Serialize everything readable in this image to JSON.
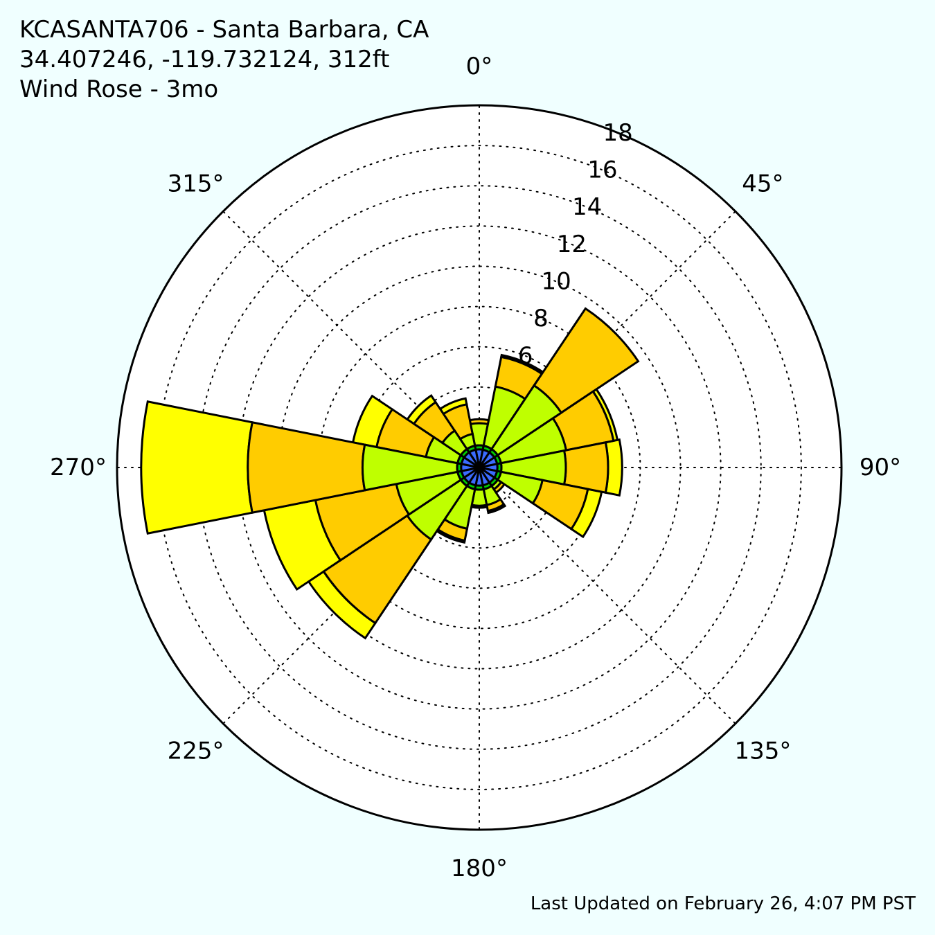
{
  "header": {
    "line1": "KCASANTA706 - Santa Barbara, CA",
    "line2": "34.407246, -119.732124, 312ft",
    "line3": "Wind Rose - 3mo"
  },
  "footer": {
    "updated": "Last Updated on February 26, 4:07 PM PST"
  },
  "chart_data": {
    "type": "windrose",
    "rmax": 18,
    "angle_ticks": [
      {
        "deg": 0,
        "label": "0°"
      },
      {
        "deg": 45,
        "label": "45°"
      },
      {
        "deg": 90,
        "label": "90°"
      },
      {
        "deg": 135,
        "label": "135°"
      },
      {
        "deg": 180,
        "label": "180°"
      },
      {
        "deg": 225,
        "label": "225°"
      },
      {
        "deg": 270,
        "label": "270°"
      },
      {
        "deg": 315,
        "label": "315°"
      }
    ],
    "radial_ticks": [
      {
        "value": 2,
        "label": ""
      },
      {
        "value": 4,
        "label": ""
      },
      {
        "value": 6,
        "label": "6"
      },
      {
        "value": 8,
        "label": "8"
      },
      {
        "value": 10,
        "label": "10"
      },
      {
        "value": 12,
        "label": "12"
      },
      {
        "value": 14,
        "label": "14"
      },
      {
        "value": 16,
        "label": "16"
      },
      {
        "value": 18,
        "label": "18"
      }
    ],
    "colors": [
      "#3b6cff",
      "#00cc00",
      "#bfff00",
      "#ffcc00",
      "#ffff00",
      "#ff6600"
    ],
    "sector_width_deg": 22.5,
    "grid": true,
    "sectors": [
      {
        "dir": 0,
        "cum": [
          0.9,
          1.1,
          2.2,
          2.4,
          2.4
        ]
      },
      {
        "dir": 22.5,
        "cum": [
          0.9,
          1.1,
          4.1,
          5.6,
          5.7
        ]
      },
      {
        "dir": 45,
        "cum": [
          0.9,
          1.1,
          4.9,
          9.5,
          9.5
        ]
      },
      {
        "dir": 67.5,
        "cum": [
          0.9,
          1.1,
          4.4,
          6.8,
          7.0
        ]
      },
      {
        "dir": 90,
        "cum": [
          0.9,
          1.1,
          4.3,
          6.4,
          7.1
        ]
      },
      {
        "dir": 112.5,
        "cum": [
          0.9,
          1.1,
          3.2,
          5.5,
          6.2
        ]
      },
      {
        "dir": 135,
        "cum": [
          0.9,
          1.1,
          1.3,
          1.5,
          1.5
        ]
      },
      {
        "dir": 157.5,
        "cum": [
          0.9,
          1.1,
          1.9,
          2.2,
          2.3
        ]
      },
      {
        "dir": 180,
        "cum": [
          0.9,
          1.1,
          1.9,
          2.0,
          2.0
        ]
      },
      {
        "dir": 202.5,
        "cum": [
          0.9,
          1.1,
          3.1,
          3.7,
          3.8
        ]
      },
      {
        "dir": 225,
        "cum": [
          0.9,
          1.1,
          4.3,
          9.3,
          10.2
        ]
      },
      {
        "dir": 247.5,
        "cum": [
          0.9,
          1.1,
          4.2,
          8.3,
          10.9
        ]
      },
      {
        "dir": 270,
        "cum": [
          0.9,
          1.1,
          5.8,
          11.5,
          16.8
        ]
      },
      {
        "dir": 292.5,
        "cum": [
          0.9,
          1.1,
          2.7,
          5.2,
          6.4
        ]
      },
      {
        "dir": 315,
        "cum": [
          0.9,
          1.1,
          2.2,
          3.9,
          4.3
        ]
      },
      {
        "dir": 337.5,
        "cum": [
          0.9,
          1.1,
          1.7,
          3.2,
          3.5
        ]
      }
    ]
  }
}
